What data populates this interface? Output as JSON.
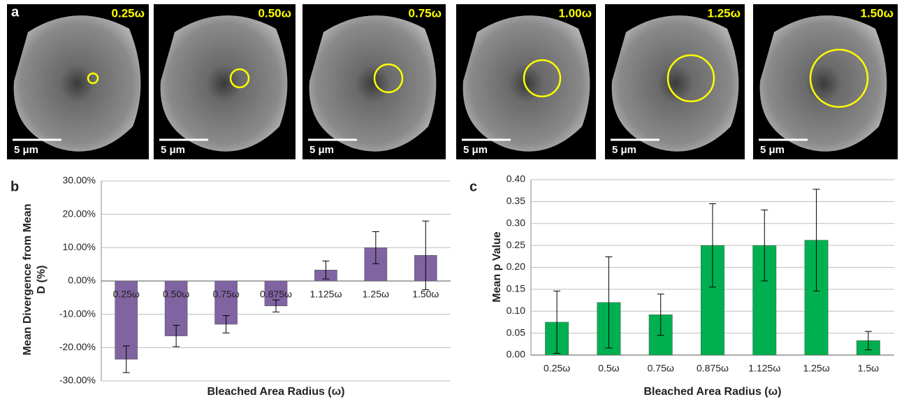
{
  "panels": {
    "label": "a",
    "images": [
      {
        "label": "0.25ω",
        "scale_bar": "5 μm"
      },
      {
        "label": "0.50ω",
        "scale_bar": "5 μm"
      },
      {
        "label": "0.75ω",
        "scale_bar": "5 μm"
      },
      {
        "label": "1.00ω",
        "scale_bar": "5 μm"
      },
      {
        "label": "1.25ω",
        "scale_bar": "5 μm"
      },
      {
        "label": "1.50ω",
        "scale_bar": "5 μm"
      }
    ]
  },
  "chart_data": [
    {
      "type": "bar",
      "panel_label": "b",
      "xlabel": "Bleached Area Radius (ω)",
      "ylabel": [
        "Mean Divergence from Mean",
        "D (%)"
      ],
      "categories": [
        "0.25ω",
        "0.50ω",
        "0.75ω",
        "0.875ω",
        "1.125ω",
        "1.25ω",
        "1.50ω"
      ],
      "series": [
        {
          "color": "#8064a2",
          "values": [
            -23.5,
            -16.5,
            -13,
            -7.5,
            3.3,
            10,
            7.7
          ],
          "errors": [
            4,
            3.2,
            2.6,
            1.8,
            2.7,
            4.8,
            10.3
          ]
        }
      ],
      "ylim": [
        -30,
        30
      ],
      "yticks": [
        {
          "value": -30,
          "label": "-30.00%"
        },
        {
          "value": -20,
          "label": "-20.00%"
        },
        {
          "value": -10,
          "label": "-10.00%"
        },
        {
          "value": 0,
          "label": "0.00%"
        },
        {
          "value": 10,
          "label": "10.00%"
        },
        {
          "value": 20,
          "label": "20.00%"
        },
        {
          "value": 30,
          "label": "30.00%"
        }
      ],
      "grid": true
    },
    {
      "type": "bar",
      "panel_label": "c",
      "xlabel": "Bleached Area Radius (ω)",
      "ylabel": [
        "Mean p Value"
      ],
      "categories": [
        "0.25ω",
        "0.5ω",
        "0.75ω",
        "0.875ω",
        "1.125ω",
        "1.25ω",
        "1.5ω"
      ],
      "series": [
        {
          "color": "#00b050",
          "values": [
            0.075,
            0.12,
            0.092,
            0.25,
            0.25,
            0.262,
            0.033
          ],
          "errors": [
            0.071,
            0.104,
            0.047,
            0.095,
            0.081,
            0.116,
            0.021
          ]
        }
      ],
      "ylim": [
        0,
        0.4
      ],
      "yticks": [
        {
          "value": 0,
          "label": "0.00"
        },
        {
          "value": 0.05,
          "label": "0.05"
        },
        {
          "value": 0.1,
          "label": "0.10"
        },
        {
          "value": 0.15,
          "label": "0.15"
        },
        {
          "value": 0.2,
          "label": "0.20"
        },
        {
          "value": 0.25,
          "label": "0.25"
        },
        {
          "value": 0.3,
          "label": "0.30"
        },
        {
          "value": 0.35,
          "label": "0.35"
        },
        {
          "value": 0.4,
          "label": "0.40"
        }
      ],
      "grid": true
    }
  ]
}
